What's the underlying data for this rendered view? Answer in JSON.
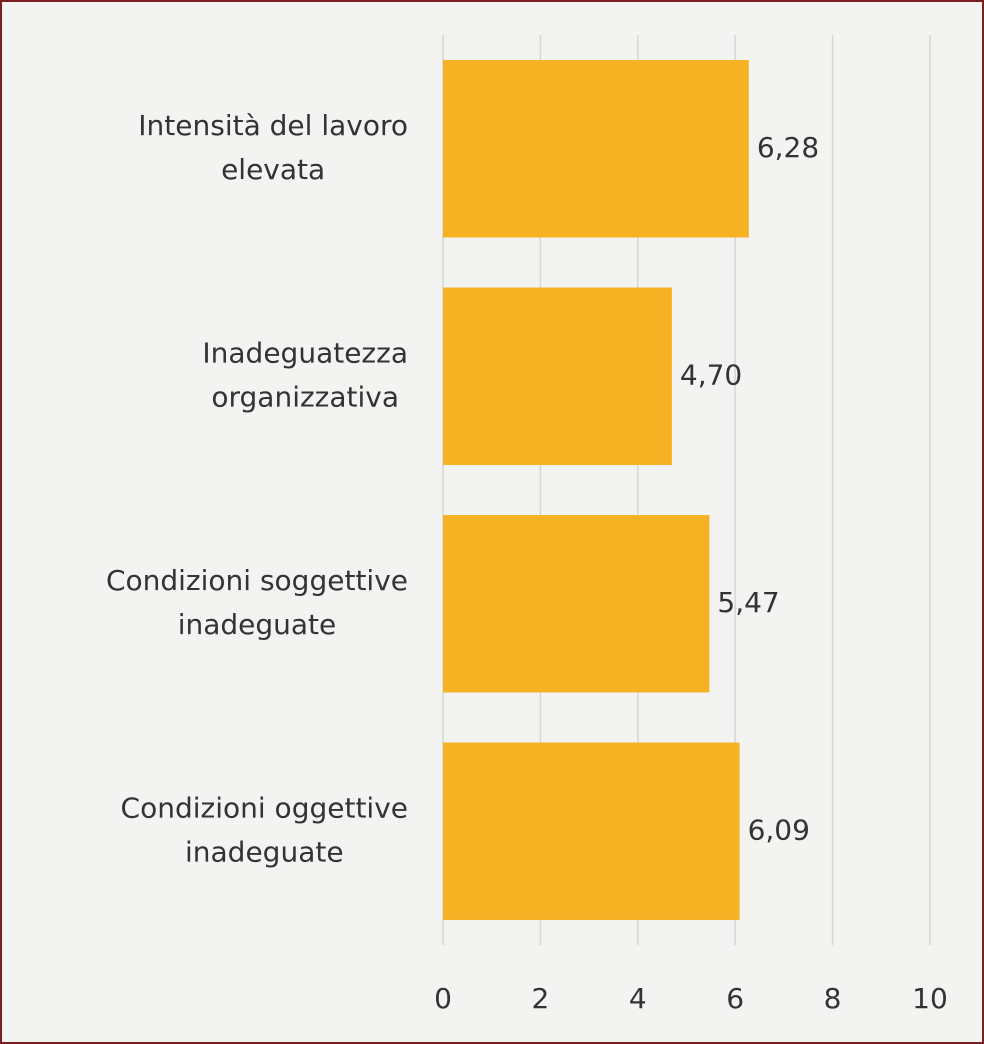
{
  "chart_data": {
    "type": "barh",
    "categories": [
      [
        "Intensità del lavoro",
        "elevata"
      ],
      [
        "Inadeguatezza",
        "organizzativa"
      ],
      [
        "Condizioni soggettive",
        "inadeguate"
      ],
      [
        "Condizioni oggettive",
        "inadeguate"
      ]
    ],
    "values": [
      6.28,
      4.7,
      5.47,
      6.09
    ],
    "value_labels": [
      "6,28",
      "4,70",
      "5,47",
      "6,09"
    ],
    "color": "#f6b223",
    "xlim": [
      0,
      10
    ],
    "xticks": [
      0,
      2,
      4,
      6,
      8,
      10
    ],
    "grid": true
  }
}
